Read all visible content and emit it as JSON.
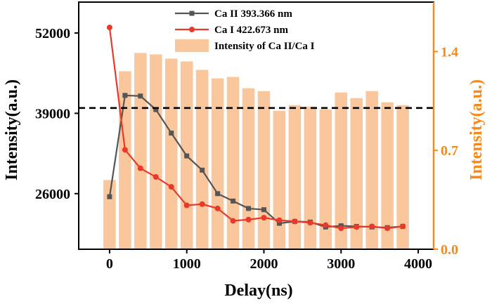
{
  "chart_data": {
    "type": "line+bar",
    "xlabel": "Delay(ns)",
    "ylabel_left": "Intensity(a.u.)",
    "ylabel_right": "Intensity(a.u.)",
    "xlim": [
      -400,
      4200
    ],
    "ylim_left": [
      17000,
      57000
    ],
    "ylim_right": [
      0.0,
      1.75
    ],
    "x_ticks": [
      0,
      1000,
      2000,
      3000,
      4000
    ],
    "y_left_ticks": [
      26000,
      39000,
      52000
    ],
    "y_right_ticks": [
      0.0,
      0.7,
      1.4
    ],
    "x": [
      0,
      200,
      400,
      600,
      800,
      1000,
      1200,
      1400,
      1600,
      1800,
      2000,
      2200,
      2400,
      2600,
      2800,
      3000,
      3200,
      3400,
      3600,
      3800
    ],
    "series": [
      {
        "name": "Ca II  393.366 nm",
        "axis": "left",
        "type": "line",
        "marker": "square",
        "color": "#555555",
        "values": [
          25500,
          41900,
          41800,
          39600,
          35800,
          32100,
          29800,
          26000,
          24800,
          23600,
          23400,
          21200,
          21500,
          21400,
          20600,
          20800,
          20700,
          20600,
          20500,
          20700
        ]
      },
      {
        "name": "Ca I  422.673 nm",
        "axis": "left",
        "type": "line",
        "marker": "circle",
        "color": "#e8392b",
        "values": [
          52900,
          33100,
          30100,
          28700,
          27100,
          24100,
          24300,
          23600,
          21600,
          21800,
          22100,
          21700,
          21500,
          21300,
          20900,
          20400,
          20600,
          20700,
          20400,
          20700
        ]
      },
      {
        "name": "Intensity of Ca II/Ca I",
        "axis": "right",
        "type": "bar",
        "color": "#f9c79b",
        "values": [
          0.49,
          1.26,
          1.39,
          1.38,
          1.35,
          1.33,
          1.27,
          1.21,
          1.22,
          1.14,
          1.12,
          0.98,
          1.02,
          1.01,
          0.99,
          1.11,
          1.07,
          1.12,
          1.04,
          1.02
        ]
      }
    ],
    "reference_line": {
      "axis": "right",
      "value": 1.0,
      "style": "dashed"
    },
    "legend": "top-center"
  }
}
